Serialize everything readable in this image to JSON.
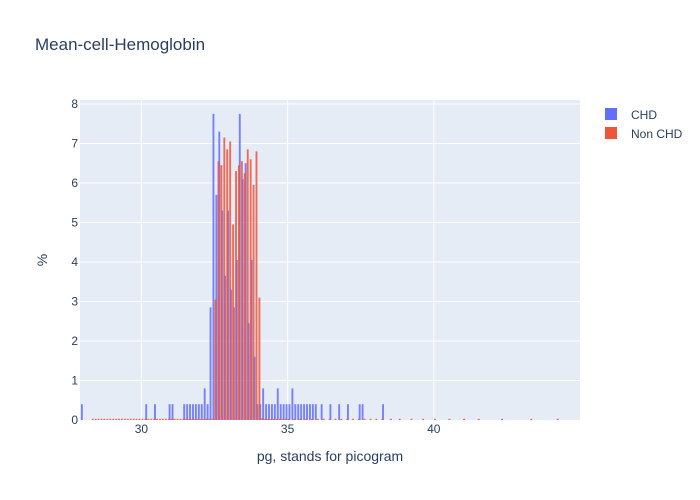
{
  "chart_data": {
    "type": "bar",
    "title": "Mean-cell-Hemoglobin",
    "xlabel": "pg, stands for picogram",
    "ylabel": "%",
    "xlim": [
      27.9,
      45.0
    ],
    "ylim": [
      0,
      8.1
    ],
    "xticks": [
      30,
      35,
      40
    ],
    "yticks": [
      0,
      1,
      2,
      3,
      4,
      5,
      6,
      7,
      8
    ],
    "grid": true,
    "legend": "top-right",
    "series": [
      {
        "name": "CHD",
        "color": "#636efa",
        "x": [
          28.0,
          30.2,
          30.5,
          31.0,
          31.1,
          31.5,
          31.6,
          31.7,
          31.8,
          31.9,
          32.0,
          32.1,
          32.2,
          32.3,
          32.4,
          32.5,
          32.6,
          32.7,
          32.8,
          32.9,
          33.0,
          33.1,
          33.2,
          33.3,
          33.4,
          33.5,
          33.6,
          33.7,
          33.8,
          33.9,
          34.0,
          34.1,
          34.2,
          34.3,
          34.4,
          34.5,
          34.6,
          34.7,
          34.8,
          34.9,
          35.0,
          35.1,
          35.2,
          35.3,
          35.4,
          35.5,
          35.6,
          35.7,
          35.8,
          35.9,
          36.0,
          36.2,
          36.5,
          36.8,
          37.1,
          37.5,
          37.6,
          38.3
        ],
        "values": [
          0.4,
          0.4,
          0.4,
          0.4,
          0.4,
          0.4,
          0.4,
          0.4,
          0.4,
          0.4,
          0.4,
          0.4,
          0.8,
          0.4,
          2.85,
          7.75,
          5.7,
          7.3,
          5.3,
          3.65,
          5.3,
          3.3,
          2.85,
          4.05,
          7.75,
          6.1,
          6.5,
          2.45,
          4.05,
          1.6,
          0.4,
          0.4,
          0.8,
          0.4,
          0.4,
          0.4,
          0.4,
          0.8,
          0.4,
          0.4,
          0.4,
          0.4,
          0.8,
          0.4,
          0.4,
          0.4,
          0.4,
          0.4,
          0.4,
          0.4,
          0.4,
          0.4,
          0.4,
          0.4,
          0.4,
          0.4,
          0.4,
          0.4
        ]
      },
      {
        "name": "Non CHD",
        "color": "#ef553b",
        "x": [
          28.3,
          28.4,
          28.5,
          28.6,
          28.7,
          28.8,
          28.9,
          29.0,
          29.1,
          29.2,
          29.3,
          29.4,
          29.5,
          29.6,
          29.7,
          29.8,
          29.9,
          30.0,
          30.1,
          30.2,
          30.3,
          30.4,
          30.5,
          30.6,
          30.7,
          30.8,
          30.9,
          31.0,
          31.1,
          31.2,
          31.3,
          31.4,
          31.5,
          31.6,
          31.7,
          31.8,
          31.9,
          32.0,
          32.1,
          32.2,
          32.3,
          32.4,
          32.5,
          32.6,
          32.7,
          32.8,
          32.9,
          33.0,
          33.1,
          33.2,
          33.3,
          33.4,
          33.5,
          33.6,
          33.7,
          33.8,
          33.9,
          34.0,
          34.1,
          34.2,
          34.3,
          34.4,
          34.5,
          34.6,
          34.7,
          34.8,
          34.9,
          35.0,
          35.2,
          35.4,
          35.6,
          35.8,
          36.0,
          36.2,
          36.4,
          36.6,
          36.8,
          37.0,
          37.2,
          37.4,
          37.6,
          37.8,
          38.0,
          38.2,
          38.5,
          38.8,
          39.2,
          39.6,
          40.0,
          40.5,
          41.0,
          41.5,
          42.3,
          43.3,
          44.2
        ],
        "values": [
          0.03,
          0.03,
          0.03,
          0.03,
          0.03,
          0.03,
          0.03,
          0.03,
          0.03,
          0.03,
          0.03,
          0.03,
          0.03,
          0.03,
          0.03,
          0.03,
          0.03,
          0.03,
          0.03,
          0.03,
          0.03,
          0.03,
          0.03,
          0.03,
          0.03,
          0.03,
          0.03,
          0.03,
          0.03,
          0.03,
          0.03,
          0.03,
          0.03,
          0.03,
          0.03,
          0.03,
          0.03,
          0.03,
          0.03,
          0.03,
          0.03,
          0.03,
          3.05,
          6.55,
          6.45,
          7.15,
          6.85,
          7.05,
          4.95,
          6.3,
          6.45,
          6.55,
          6.25,
          6.85,
          6.6,
          5.95,
          6.8,
          3.1,
          0.05,
          0.03,
          0.03,
          0.03,
          0.03,
          0.03,
          0.03,
          0.03,
          0.03,
          0.03,
          0.03,
          0.03,
          0.03,
          0.03,
          0.03,
          0.03,
          0.03,
          0.03,
          0.03,
          0.03,
          0.03,
          0.03,
          0.03,
          0.03,
          0.03,
          0.03,
          0.03,
          0.03,
          0.03,
          0.03,
          0.03,
          0.03,
          0.03,
          0.03,
          0.03,
          0.03,
          0.03
        ]
      }
    ]
  }
}
